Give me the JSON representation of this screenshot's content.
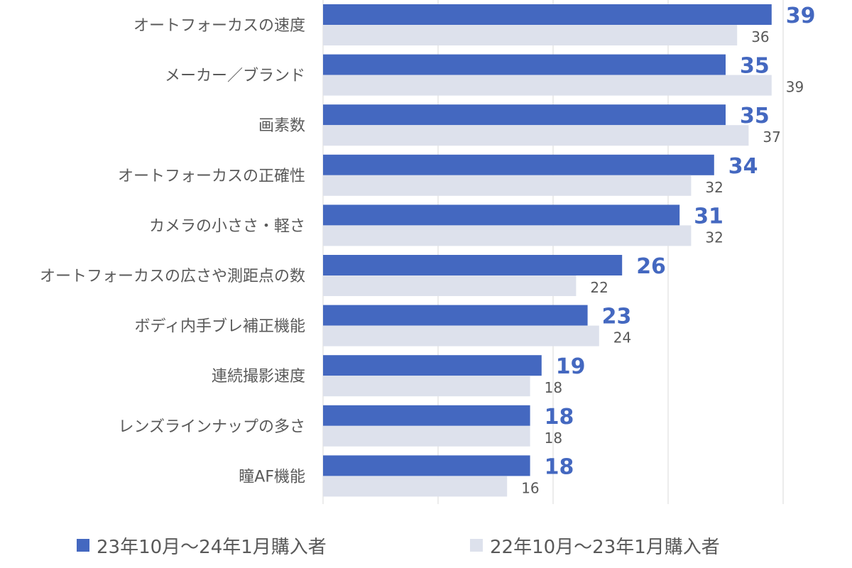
{
  "chart_data": {
    "type": "bar",
    "orientation": "horizontal",
    "categories": [
      "オートフォーカスの速度",
      "メーカー／ブランド",
      "画素数",
      "オートフォーカスの正確性",
      "カメラの小ささ・軽さ",
      "オートフォーカスの広さや測距点の数",
      "ボディ内手ブレ補正機能",
      "連続撮影速度",
      "レンズラインナップの多さ",
      "瞳AF機能"
    ],
    "series": [
      {
        "name": "23年10月～24年1月購入者",
        "values": [
          39,
          35,
          35,
          34,
          31,
          26,
          23,
          19,
          18,
          18
        ],
        "color": "#4468c0"
      },
      {
        "name": "22年10月～23年1月購入者",
        "values": [
          36,
          39,
          37,
          32,
          32,
          22,
          24,
          18,
          18,
          16
        ],
        "color": "#dde1ec"
      }
    ],
    "xlim": [
      0,
      40
    ],
    "grid": true,
    "legend_position": "bottom"
  }
}
